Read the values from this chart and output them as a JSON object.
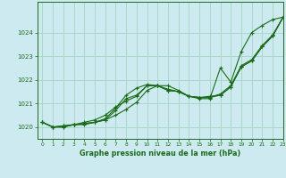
{
  "title": "Graphe pression niveau de la mer (hPa)",
  "background_color": "#cdeaf0",
  "grid_color": "#a8d8c8",
  "line_color": "#1a6b1a",
  "xlim": [
    -0.5,
    23
  ],
  "ylim": [
    1019.5,
    1025.3
  ],
  "yticks": [
    1020,
    1021,
    1022,
    1023,
    1024
  ],
  "xticks": [
    0,
    1,
    2,
    3,
    4,
    5,
    6,
    7,
    8,
    9,
    10,
    11,
    12,
    13,
    14,
    15,
    16,
    17,
    18,
    19,
    20,
    21,
    22,
    23
  ],
  "series": [
    [
      1020.2,
      1020.0,
      1020.0,
      1020.1,
      1020.15,
      1020.2,
      1020.35,
      1020.8,
      1021.35,
      1021.65,
      1021.8,
      1021.75,
      1021.55,
      1021.5,
      1021.3,
      1021.2,
      1021.2,
      1022.5,
      1021.9,
      1023.2,
      1024.0,
      1024.3,
      1024.55,
      1024.65
    ],
    [
      1020.2,
      1020.0,
      1020.0,
      1020.1,
      1020.1,
      1020.2,
      1020.3,
      1020.7,
      1021.2,
      1021.35,
      1021.75,
      1021.75,
      1021.6,
      1021.5,
      1021.3,
      1021.25,
      1021.25,
      1021.4,
      1021.75,
      1022.6,
      1022.85,
      1023.45,
      1023.9,
      1024.65
    ],
    [
      1020.2,
      1020.0,
      1020.05,
      1020.1,
      1020.2,
      1020.3,
      1020.5,
      1020.85,
      1021.1,
      1021.3,
      1021.75,
      1021.75,
      1021.55,
      1021.5,
      1021.3,
      1021.25,
      1021.3,
      1021.35,
      1021.7,
      1022.55,
      1022.8,
      1023.4,
      1023.85,
      1024.65
    ],
    [
      1020.2,
      1020.0,
      1020.05,
      1020.1,
      1020.15,
      1020.2,
      1020.3,
      1020.5,
      1020.75,
      1021.05,
      1021.55,
      1021.75,
      1021.75,
      1021.55,
      1021.3,
      1021.25,
      1021.25,
      1021.35,
      1021.7,
      1022.55,
      1022.8,
      1023.4,
      1023.85,
      1024.65
    ]
  ]
}
